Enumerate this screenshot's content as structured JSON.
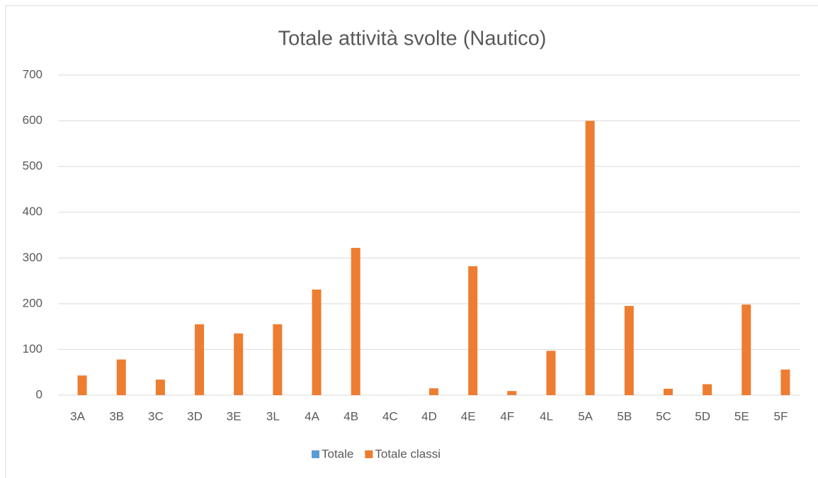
{
  "chart_data": {
    "type": "bar",
    "title": "Totale attività svolte (Nautico)",
    "categories": [
      "3A",
      "3B",
      "3C",
      "3D",
      "3E",
      "3L",
      "4A",
      "4B",
      "4C",
      "4D",
      "4E",
      "4F",
      "4L",
      "5A",
      "5B",
      "5C",
      "5D",
      "5E",
      "5F"
    ],
    "series": [
      {
        "name": "Totale",
        "color": "#5b9bd5",
        "values": [
          0,
          0,
          0,
          0,
          0,
          0,
          0,
          0,
          0,
          0,
          0,
          0,
          0,
          0,
          0,
          0,
          0,
          0,
          0
        ]
      },
      {
        "name": "Totale classi",
        "color": "#ed7d31",
        "values": [
          43,
          78,
          34,
          155,
          135,
          155,
          231,
          322,
          0,
          15,
          282,
          9,
          97,
          600,
          195,
          14,
          24,
          198,
          56
        ]
      }
    ],
    "ylim": [
      0,
      700
    ],
    "yticks": [
      0,
      100,
      200,
      300,
      400,
      500,
      600,
      700
    ],
    "grid": true,
    "legend": "bottom"
  }
}
